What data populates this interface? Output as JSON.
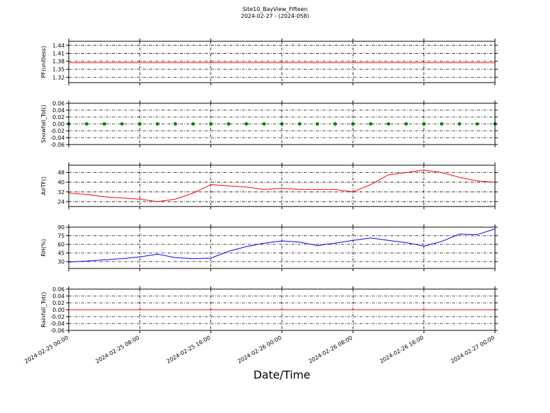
{
  "chart_data": {
    "type": "multi-panel",
    "title": "Site10_BayView_Fifteen",
    "subtitle": "2024-02-27 - (2024-058)",
    "x_label": "Date/Time",
    "x": [
      "2024-02-25 00:00",
      "2024-02-25 02:00",
      "2024-02-25 04:00",
      "2024-02-25 06:00",
      "2024-02-25 08:00",
      "2024-02-25 10:00",
      "2024-02-25 12:00",
      "2024-02-25 14:00",
      "2024-02-25 16:00",
      "2024-02-25 18:00",
      "2024-02-25 20:00",
      "2024-02-25 22:00",
      "2024-02-26 00:00",
      "2024-02-26 02:00",
      "2024-02-26 04:00",
      "2024-02-26 06:00",
      "2024-02-26 08:00",
      "2024-02-26 10:00",
      "2024-02-26 12:00",
      "2024-02-26 14:00",
      "2024-02-26 16:00",
      "2024-02-26 18:00",
      "2024-02-26 20:00",
      "2024-02-26 22:00",
      "2024-02-27 00:00"
    ],
    "xlim": [
      "2024-02-25 00:00",
      "2024-02-27 00:00"
    ],
    "xticks": [
      "2024-02-25 00:00",
      "2024-02-25 08:00",
      "2024-02-25 16:00",
      "2024-02-26 00:00",
      "2024-02-26 08:00",
      "2024-02-26 16:00",
      "2024-02-27 00:00"
    ],
    "grid": true,
    "panels": [
      {
        "type": "line",
        "ylabel": "PF(unitless)",
        "ylim": [
          1.3,
          1.455
        ],
        "yticks": [
          1.32,
          1.35,
          1.38,
          1.41,
          1.44
        ],
        "series": [
          {
            "color": "#ff0000",
            "values": [
              1.375,
              1.375,
              1.375,
              1.375,
              1.375,
              1.375,
              1.375,
              1.375,
              1.375,
              1.375,
              1.375,
              1.375,
              1.375,
              1.375,
              1.375,
              1.375,
              1.375,
              1.375,
              1.375,
              1.375,
              1.375,
              1.375,
              1.375,
              1.375,
              1.375
            ]
          }
        ]
      },
      {
        "type": "scatter",
        "ylabel": "Snowfall_Tot()",
        "ylim": [
          -0.06,
          0.06
        ],
        "yticks": [
          -0.06,
          -0.04,
          -0.02,
          {
            "value": 0,
            "label": "0.00"
          },
          0.02,
          0.04,
          0.06
        ],
        "series": [
          {
            "color": "#008000",
            "values": [
              0,
              0,
              0,
              0,
              0,
              0,
              0,
              0,
              0,
              0,
              0,
              0,
              0,
              0,
              0,
              0,
              0,
              0,
              0,
              0,
              0,
              0,
              0,
              0,
              0
            ]
          }
        ]
      },
      {
        "type": "line",
        "ylabel": "AirTF()",
        "ylim": [
          20,
          54
        ],
        "yticks": [
          24,
          32,
          40,
          48
        ],
        "series": [
          {
            "color": "#ff0000",
            "values": [
              31,
              30,
              28,
              27,
              26,
              24,
              26,
              31,
              38,
              37,
              36,
              34,
              35,
              34,
              34,
              34,
              32,
              38,
              46,
              48,
              50,
              48,
              44,
              41,
              40
            ]
          }
        ]
      },
      {
        "type": "line",
        "ylabel": "RH(%)",
        "ylim": [
          18,
          90
        ],
        "yticks": [
          30,
          45,
          60,
          75,
          90
        ],
        "series": [
          {
            "color": "#0000ff",
            "values": [
              29,
              31,
              33,
              35,
              38,
              43,
              37,
              35,
              36,
              48,
              56,
              62,
              66,
              64,
              58,
              62,
              67,
              71,
              67,
              63,
              57,
              65,
              78,
              77,
              87
            ]
          }
        ]
      },
      {
        "type": "line",
        "ylabel": "Rainfall_Tot()",
        "ylim": [
          -0.06,
          0.06
        ],
        "yticks": [
          -0.06,
          -0.04,
          -0.02,
          {
            "value": 0,
            "label": "0.00"
          },
          0.02,
          0.04,
          0.06
        ],
        "series": [
          {
            "color": "#ff0000",
            "values": [
              0,
              0,
              0,
              0,
              0,
              0,
              0,
              0,
              0,
              0,
              0,
              0,
              0,
              0,
              0,
              0,
              0,
              0,
              0,
              0,
              0,
              0,
              0,
              0,
              0
            ]
          }
        ]
      }
    ]
  }
}
